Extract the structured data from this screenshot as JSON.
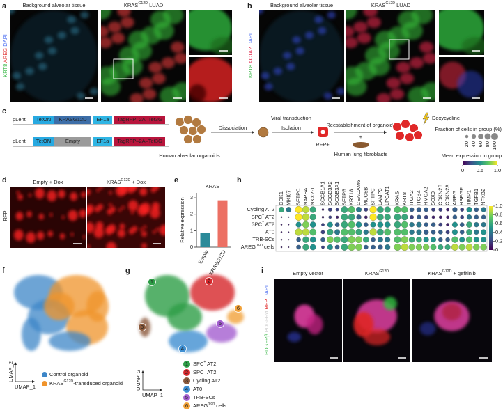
{
  "panels": {
    "a": {
      "label": "a",
      "title_left": "Background alveolar tissue",
      "title_right": {
        "base": "KRAS",
        "sup": "G12D",
        "rest": " LUAD"
      },
      "stains": [
        "KRT8",
        "AREG",
        "DAPI"
      ]
    },
    "b": {
      "label": "b",
      "title_left": "Background alveolar tissue",
      "title_right": {
        "base": "KRAS",
        "sup": "G12D",
        "rest": " LUAD"
      },
      "stains": [
        "KRT8",
        "ACTA2",
        "DAPI"
      ]
    },
    "c": {
      "label": "c",
      "constructs": [
        {
          "vector": "pLenti",
          "parts": [
            "TetON",
            "KRASG12D",
            "EF1a",
            "TagRFP–2A–Tet3G"
          ]
        },
        {
          "vector": "pLenti",
          "parts": [
            "TetON",
            "Empty",
            "EF1a",
            "TagRFP–2A–Tet3G"
          ]
        }
      ],
      "organoid_label": "Human alveolar organoids",
      "dissociation": "Dissociation",
      "transduction": "Viral transduction",
      "isolation": "Isolation",
      "rfp": "RFP+",
      "reestablishment": "Reestablishment of organoids",
      "plus": "+",
      "fibroblasts": "Human lung fibroblasts",
      "doxycycline": "Doxycycline"
    },
    "d": {
      "label": "d",
      "titles": [
        "Empty + Dox",
        {
          "base": "KRAS",
          "sup": "G12D",
          "rest": " + Dox"
        }
      ],
      "stain": "RFP"
    },
    "f": {
      "label": "f",
      "x_label": "UMAP_1",
      "y_label": "UMAP_2",
      "legend": [
        "Control organoid",
        {
          "base": "KRAS",
          "sup": "G12D",
          "rest": "-transduced organoid"
        }
      ],
      "colors": [
        "#3d86c8",
        "#f0942c"
      ]
    },
    "g": {
      "label": "g",
      "x_label": "UMAP_1",
      "y_label": "UMAP_2",
      "clusters": [
        {
          "num": "1",
          "name": {
            "base": "SPC",
            "sup": "+",
            "rest": " AT2"
          },
          "color": "#2e9e47"
        },
        {
          "num": "2",
          "name": {
            "base": "SPC",
            "sup": "−",
            "rest": " AT2"
          },
          "color": "#d6272b"
        },
        {
          "num": "3",
          "name": "Cycling AT2",
          "color": "#8c5a3c"
        },
        {
          "num": "4",
          "name": "AT0",
          "color": "#3f8fd2"
        },
        {
          "num": "5",
          "name": "TRB-SCs",
          "color": "#a45fd0"
        },
        {
          "num": "6",
          "name": {
            "base": "AREG",
            "sup": "high",
            "rest": " cells"
          },
          "color": "#f2a23a"
        }
      ]
    },
    "i": {
      "label": "i",
      "titles": [
        "Empty vector",
        {
          "base": "KRAS",
          "sup": "G12D"
        },
        {
          "base": "KRAS",
          "sup": "G12D",
          "rest": " + gefitinib"
        }
      ],
      "stains": [
        "PDGFRβ",
        "PDGFRα",
        "RFP",
        "DAPI"
      ]
    }
  },
  "chart_data": [
    {
      "type": "bar",
      "panel_label": "e",
      "title": "KRAS",
      "y_label": "Relative expression",
      "categories": [
        "Empty",
        "KRASG12D"
      ],
      "values": [
        0.85,
        2.85
      ],
      "colors": [
        "#2b8a99",
        "#ec7064"
      ],
      "ylim": [
        0,
        3.3
      ],
      "yticks": [
        0,
        1,
        2,
        3
      ]
    },
    {
      "type": "dotplot",
      "panel_label": "h",
      "genes": [
        "CDK1",
        "MKI67",
        "SFTPC",
        "NAPSA",
        "NKX2-1",
        "SCGB1A1",
        "SCGB3A2",
        "SCGB3A1",
        "SFTPB",
        "KRT18",
        "CEACAM6",
        "MUC5B",
        "SFTPC",
        "LAMP3",
        "LPCAT1",
        "KRAS",
        "KRT8",
        "ITGA2",
        "ITGB4",
        "HMGA2",
        "SOX9",
        "CDKN2B",
        "CDKN2A",
        "AREG",
        "HBEGF",
        "TIMP1",
        "TGFB1",
        "NFKB2"
      ],
      "rows": [
        "Cycling AT2",
        {
          "base": "SPC",
          "sup": "+",
          "rest": " AT2"
        },
        {
          "base": "SPC",
          "sup": "−",
          "rest": " AT2"
        },
        "AT0",
        "TRB-SCs",
        {
          "base": "AREG",
          "sup": "high",
          "rest": " cells"
        }
      ],
      "fraction": [
        [
          60,
          55,
          100,
          100,
          80,
          10,
          30,
          20,
          90,
          95,
          60,
          30,
          100,
          90,
          80,
          95,
          90,
          40,
          50,
          40,
          30,
          30,
          20,
          50,
          30,
          60,
          40,
          50
        ],
        [
          5,
          3,
          100,
          100,
          80,
          10,
          20,
          15,
          90,
          90,
          50,
          20,
          100,
          90,
          80,
          90,
          80,
          30,
          40,
          30,
          20,
          20,
          20,
          40,
          30,
          50,
          40,
          40
        ],
        [
          5,
          3,
          60,
          90,
          70,
          20,
          60,
          40,
          90,
          95,
          70,
          40,
          60,
          70,
          70,
          90,
          90,
          50,
          60,
          40,
          40,
          30,
          20,
          60,
          40,
          70,
          50,
          50
        ],
        [
          5,
          3,
          100,
          100,
          90,
          30,
          80,
          60,
          100,
          95,
          80,
          50,
          100,
          90,
          90,
          95,
          95,
          50,
          60,
          50,
          40,
          40,
          30,
          60,
          40,
          70,
          50,
          60
        ],
        [
          5,
          3,
          40,
          80,
          70,
          40,
          90,
          80,
          90,
          100,
          90,
          70,
          40,
          60,
          60,
          90,
          95,
          70,
          70,
          60,
          60,
          40,
          40,
          80,
          60,
          80,
          60,
          60
        ],
        [
          5,
          3,
          40,
          80,
          70,
          20,
          60,
          40,
          90,
          100,
          90,
          40,
          40,
          50,
          60,
          95,
          100,
          80,
          80,
          80,
          70,
          60,
          60,
          90,
          80,
          90,
          80,
          80
        ]
      ],
      "expression": [
        [
          0.6,
          0.4,
          1.0,
          0.9,
          0.6,
          0.1,
          0.2,
          0.2,
          0.6,
          0.7,
          0.4,
          0.2,
          1.0,
          0.6,
          0.6,
          0.7,
          0.7,
          0.3,
          0.3,
          0.3,
          0.2,
          0.2,
          0.1,
          0.3,
          0.2,
          0.5,
          0.3,
          0.4
        ],
        [
          0.1,
          0.1,
          1.0,
          0.9,
          0.6,
          0.1,
          0.2,
          0.1,
          0.6,
          0.6,
          0.3,
          0.1,
          1.0,
          0.6,
          0.6,
          0.6,
          0.6,
          0.2,
          0.3,
          0.2,
          0.1,
          0.1,
          0.1,
          0.3,
          0.2,
          0.4,
          0.3,
          0.3
        ],
        [
          0.1,
          0.1,
          0.5,
          0.8,
          0.5,
          0.2,
          0.5,
          0.3,
          0.6,
          0.7,
          0.5,
          0.3,
          0.5,
          0.5,
          0.5,
          0.6,
          0.7,
          0.4,
          0.4,
          0.3,
          0.3,
          0.2,
          0.1,
          0.5,
          0.3,
          0.6,
          0.4,
          0.4
        ],
        [
          0.1,
          0.1,
          0.9,
          0.9,
          0.7,
          0.2,
          0.6,
          0.4,
          0.7,
          0.7,
          0.6,
          0.4,
          0.9,
          0.6,
          0.7,
          0.7,
          0.7,
          0.4,
          0.4,
          0.3,
          0.3,
          0.3,
          0.2,
          0.5,
          0.3,
          0.6,
          0.4,
          0.5
        ],
        [
          0.1,
          0.1,
          0.3,
          0.6,
          0.5,
          0.3,
          0.8,
          0.7,
          0.6,
          0.8,
          0.8,
          0.6,
          0.3,
          0.4,
          0.4,
          0.7,
          0.8,
          0.6,
          0.6,
          0.5,
          0.5,
          0.3,
          0.3,
          0.7,
          0.5,
          0.7,
          0.5,
          0.5
        ],
        [
          0.1,
          0.1,
          0.3,
          0.6,
          0.5,
          0.2,
          0.5,
          0.3,
          0.6,
          0.8,
          0.8,
          0.3,
          0.3,
          0.3,
          0.4,
          0.8,
          0.9,
          0.8,
          0.8,
          0.8,
          0.7,
          0.6,
          0.6,
          0.9,
          0.8,
          0.9,
          0.8,
          0.8
        ]
      ],
      "clim": [
        0,
        1
      ],
      "colorbar_ticks": [
        0,
        0.2,
        0.4,
        0.6,
        0.8,
        {
          "value": 1,
          "label": "1.0"
        }
      ],
      "size_legend": {
        "title": "Fraction of cells in group (%)",
        "values": [
          20,
          40,
          60,
          80,
          100
        ]
      },
      "color_legend": {
        "title": "Mean expression in group",
        "ticks": [
          0,
          0.5,
          {
            "value": 1,
            "label": "1.0"
          }
        ]
      }
    }
  ]
}
